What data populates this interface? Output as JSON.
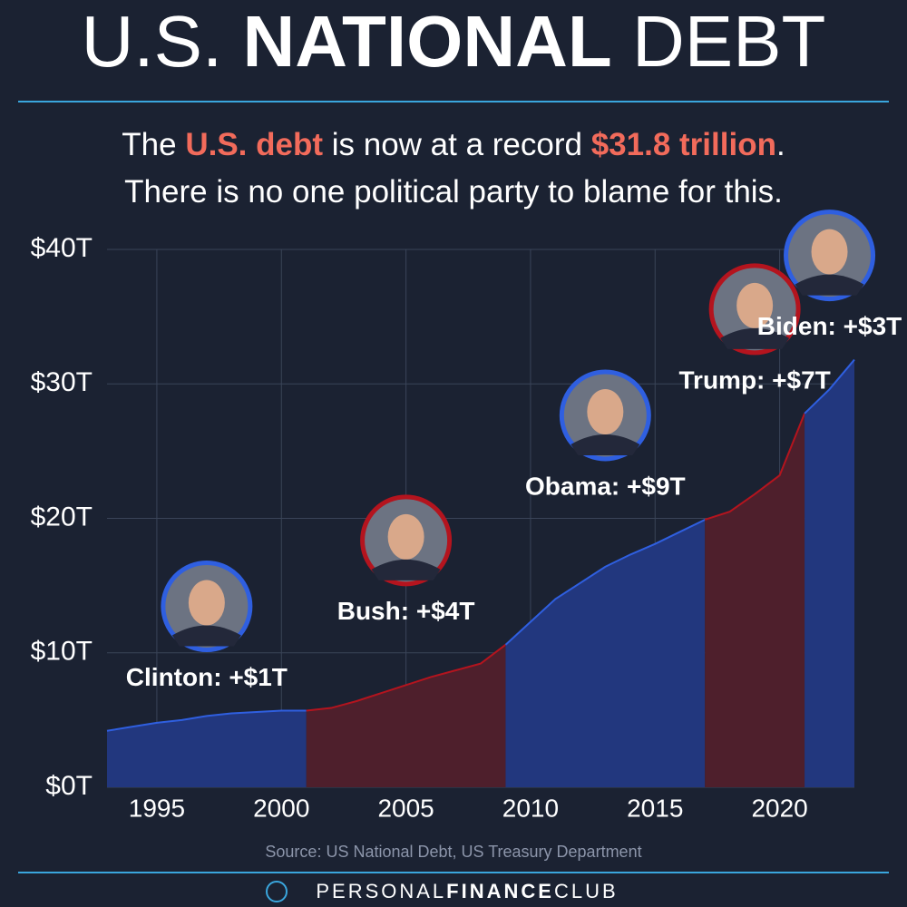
{
  "chart_data": {
    "type": "area",
    "title": [
      "U.S. ",
      "NATIONAL",
      " DEBT"
    ],
    "subtitle": [
      [
        "The ",
        "U.S. debt",
        " is now at a record ",
        "$31.8 trillion",
        "."
      ],
      [
        "There is no one political party to blame for this."
      ]
    ],
    "xlim": [
      1993,
      2023
    ],
    "xticks": [
      1995,
      2000,
      2005,
      2010,
      2015,
      2020
    ],
    "ylim": [
      0,
      40
    ],
    "yticks": [
      {
        "value": 0,
        "label": "$0T"
      },
      {
        "value": 10,
        "label": "$10T"
      },
      {
        "value": 20,
        "label": "$20T"
      },
      {
        "value": 30,
        "label": "$30T"
      },
      {
        "value": 40,
        "label": "$40T"
      }
    ],
    "grid": true,
    "series": [
      {
        "name": "Clinton: +$1T",
        "color": "#22377e",
        "line_color": "#2f5fe0",
        "x": [
          1993,
          1994,
          1995,
          1996,
          1997,
          1998,
          1999,
          2000,
          2001
        ],
        "values": [
          4.2,
          4.5,
          4.8,
          5.0,
          5.3,
          5.5,
          5.6,
          5.7,
          5.7
        ]
      },
      {
        "name": "Bush: +$4T",
        "color": "#4e1f2c",
        "line_color": "#b4141e",
        "x": [
          2001,
          2002,
          2003,
          2004,
          2005,
          2006,
          2007,
          2008,
          2009
        ],
        "values": [
          5.7,
          5.9,
          6.4,
          7.0,
          7.6,
          8.2,
          8.7,
          9.2,
          10.6
        ]
      },
      {
        "name": "Obama: +$9T",
        "color": "#22377e",
        "line_color": "#2f5fe0",
        "x": [
          2009,
          2010,
          2011,
          2012,
          2013,
          2014,
          2015,
          2016,
          2017
        ],
        "values": [
          10.6,
          12.3,
          14.0,
          15.2,
          16.4,
          17.3,
          18.1,
          19.0,
          19.9
        ]
      },
      {
        "name": "Trump: +$7T",
        "color": "#4e1f2c",
        "line_color": "#b4141e",
        "x": [
          2017,
          2018,
          2019,
          2020,
          2021
        ],
        "values": [
          19.9,
          20.5,
          21.8,
          23.2,
          27.8
        ]
      },
      {
        "name": "Biden: +$3T",
        "color": "#22377e",
        "line_color": "#2f5fe0",
        "x": [
          2021,
          2022,
          2023
        ],
        "values": [
          27.8,
          29.6,
          31.8
        ]
      }
    ],
    "highlight_color": "#f26b5b",
    "source": "Source: US National Debt, US Treasury Department",
    "brand": [
      "PERSONAL",
      "FINANCE",
      "CLUB"
    ]
  }
}
